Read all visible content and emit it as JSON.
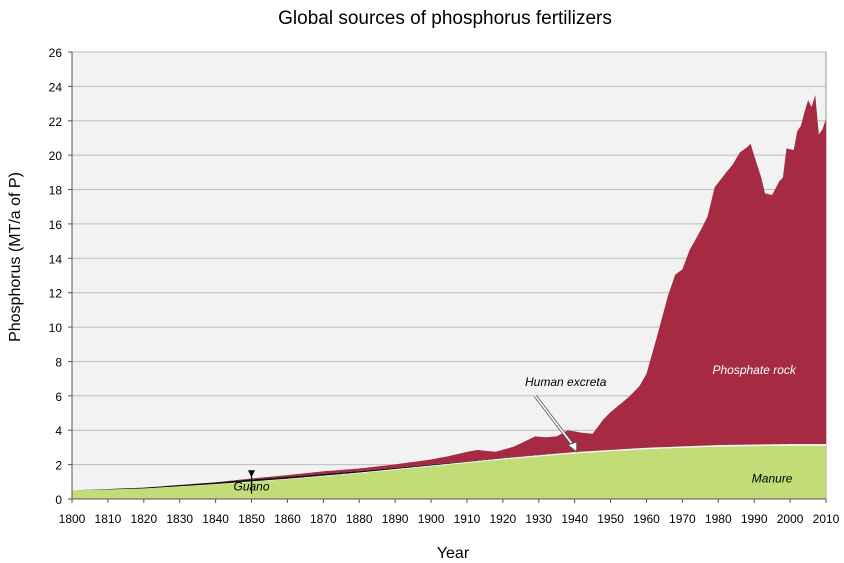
{
  "chart_data": {
    "type": "area",
    "title": "Global sources of phosphorus fertilizers",
    "xlabel": "Year",
    "ylabel": "Phosphorus (MT/a of P)",
    "xlim": [
      1800,
      2010
    ],
    "ylim": [
      0,
      26
    ],
    "x_ticks": [
      "1800",
      "1810",
      "1820",
      "1830",
      "1840",
      "1850",
      "1860",
      "1870",
      "1880",
      "1890",
      "1900",
      "1910",
      "1920",
      "1930",
      "1940",
      "1950",
      "1960",
      "1970",
      "1980",
      "1990",
      "2000",
      "2010"
    ],
    "y_ticks": [
      "0",
      "2",
      "4",
      "6",
      "8",
      "10",
      "12",
      "14",
      "16",
      "18",
      "20",
      "22",
      "24",
      "26"
    ],
    "grid": true,
    "stacked": true,
    "series": [
      {
        "name": "Manure",
        "color": "#c2dc78",
        "points": [
          [
            1800,
            0.5
          ],
          [
            1820,
            0.6
          ],
          [
            1840,
            0.85
          ],
          [
            1860,
            1.15
          ],
          [
            1880,
            1.5
          ],
          [
            1900,
            1.9
          ],
          [
            1920,
            2.3
          ],
          [
            1940,
            2.65
          ],
          [
            1960,
            2.9
          ],
          [
            1980,
            3.05
          ],
          [
            2000,
            3.1
          ],
          [
            2010,
            3.1
          ]
        ]
      },
      {
        "name": "Human excreta",
        "color": "#f4f4f4",
        "points": [
          [
            1800,
            0
          ],
          [
            1900,
            0.05
          ],
          [
            1940,
            0.08
          ],
          [
            1960,
            0.08
          ],
          [
            2010,
            0.1
          ]
        ]
      },
      {
        "name": "Guano",
        "color": "#111111",
        "points": [
          [
            1800,
            0
          ],
          [
            1820,
            0.05
          ],
          [
            1840,
            0.1
          ],
          [
            1850,
            0.12
          ],
          [
            1870,
            0.1
          ],
          [
            1900,
            0.05
          ],
          [
            1920,
            0.02
          ],
          [
            1940,
            0
          ],
          [
            2010,
            0
          ]
        ]
      },
      {
        "name": "Phosphate rock",
        "color": "#a52a42",
        "points": [
          [
            1800,
            0
          ],
          [
            1840,
            0
          ],
          [
            1860,
            0.1
          ],
          [
            1870,
            0.15
          ],
          [
            1880,
            0.15
          ],
          [
            1890,
            0.2
          ],
          [
            1900,
            0.3
          ],
          [
            1905,
            0.4
          ],
          [
            1910,
            0.55
          ],
          [
            1913,
            0.6
          ],
          [
            1918,
            0.4
          ],
          [
            1923,
            0.6
          ],
          [
            1929,
            1.1
          ],
          [
            1932,
            1.0
          ],
          [
            1935,
            1.0
          ],
          [
            1938,
            1.3
          ],
          [
            1942,
            1.1
          ],
          [
            1945,
            1.0
          ],
          [
            1948,
            1.8
          ],
          [
            1950,
            2.2
          ],
          [
            1955,
            3.0
          ],
          [
            1958,
            3.6
          ],
          [
            1960,
            4.3
          ],
          [
            1963,
            6.5
          ],
          [
            1966,
            8.8
          ],
          [
            1968,
            10.0
          ],
          [
            1970,
            10.3
          ],
          [
            1972,
            11.4
          ],
          [
            1975,
            12.5
          ],
          [
            1977,
            13.3
          ],
          [
            1979,
            15.0
          ],
          [
            1982,
            15.8
          ],
          [
            1984,
            16.3
          ],
          [
            1986,
            17.0
          ],
          [
            1988,
            17.3
          ],
          [
            1989,
            17.5
          ],
          [
            1990,
            16.8
          ],
          [
            1992,
            15.5
          ],
          [
            1993,
            14.6
          ],
          [
            1995,
            14.5
          ],
          [
            1997,
            15.3
          ],
          [
            1998,
            15.5
          ],
          [
            1999,
            17.2
          ],
          [
            2001,
            17.1
          ],
          [
            2002,
            18.2
          ],
          [
            2003,
            18.5
          ],
          [
            2004,
            19.3
          ],
          [
            2005,
            20.0
          ],
          [
            2006,
            19.6
          ],
          [
            2007,
            20.3
          ],
          [
            2008,
            18.0
          ],
          [
            2009,
            18.3
          ],
          [
            2010,
            18.9
          ]
        ]
      }
    ],
    "annotations": [
      {
        "text": "Guano",
        "x": 1850,
        "y": 1.3
      },
      {
        "text": "Human excreta",
        "x": 1940,
        "y": 2.8
      },
      {
        "text": "Phosphate rock",
        "x": 1990,
        "y": 7.5
      },
      {
        "text": "Manure",
        "x": 1995,
        "y": 1.2
      }
    ]
  }
}
